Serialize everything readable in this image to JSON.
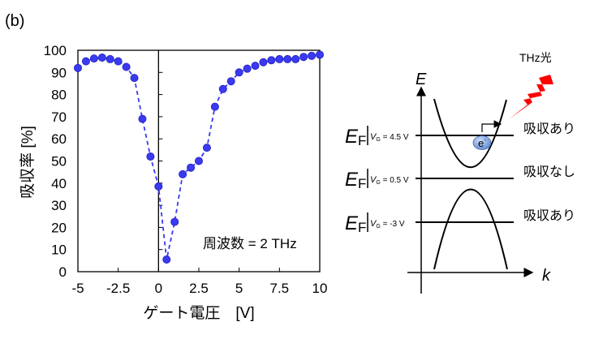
{
  "panel_label": "(b)",
  "chart_data": {
    "type": "line",
    "title": "",
    "xlabel": "ゲート電圧　[V]",
    "ylabel": "吸収率 [%]",
    "xlim": [
      -5,
      10
    ],
    "ylim": [
      0,
      100
    ],
    "xticks": [
      "-5",
      "-2.5",
      "0",
      "2.5",
      "5",
      "7.5",
      "10"
    ],
    "xtick_values": [
      -5,
      -2.5,
      0,
      2.5,
      5,
      7.5,
      10
    ],
    "yticks": [
      "0",
      "10",
      "20",
      "30",
      "40",
      "50",
      "60",
      "70",
      "80",
      "90",
      "100"
    ],
    "ytick_values": [
      0,
      10,
      20,
      30,
      40,
      50,
      60,
      70,
      80,
      90,
      100
    ],
    "grid": false,
    "series_color": "#3a3af0",
    "line_style": "dashed",
    "annotation": "周波数 = 2 THz",
    "x": [
      -5,
      -4.5,
      -4,
      -3.5,
      -3,
      -2.5,
      -2,
      -1.5,
      -1,
      -0.5,
      0,
      0.5,
      1,
      1.5,
      2,
      2.5,
      3,
      3.5,
      4,
      4.5,
      5,
      5.5,
      6,
      6.5,
      7,
      7.5,
      8,
      8.5,
      9,
      9.5,
      10
    ],
    "y": [
      92,
      95,
      96.3,
      96.7,
      96,
      95,
      92.5,
      87.5,
      69,
      52,
      38.5,
      5.5,
      22.5,
      44,
      47,
      50,
      56,
      74.5,
      82.5,
      86,
      90,
      91.7,
      93,
      94.6,
      95.5,
      96,
      96,
      96,
      97,
      97.5,
      98
    ]
  },
  "diagram": {
    "energy_axis_label": "E",
    "momentum_axis_label": "k",
    "light_label": "THz光",
    "electron_label": "e",
    "electron_charge": "-",
    "fermi_symbol": "E",
    "fermi_subscript": "F",
    "levels": [
      {
        "gate_label": "V",
        "gate_sub": "G",
        "value": " = 4.5 V",
        "result": "吸収あり"
      },
      {
        "gate_label": "V",
        "gate_sub": "G",
        "value": " = 0.5 V",
        "result": "吸収なし"
      },
      {
        "gate_label": "V",
        "gate_sub": "G",
        "value": " = -3 V",
        "result": "吸収あり"
      }
    ],
    "bolt_color": "#ff0000",
    "electron_color": "#6a9be0"
  }
}
